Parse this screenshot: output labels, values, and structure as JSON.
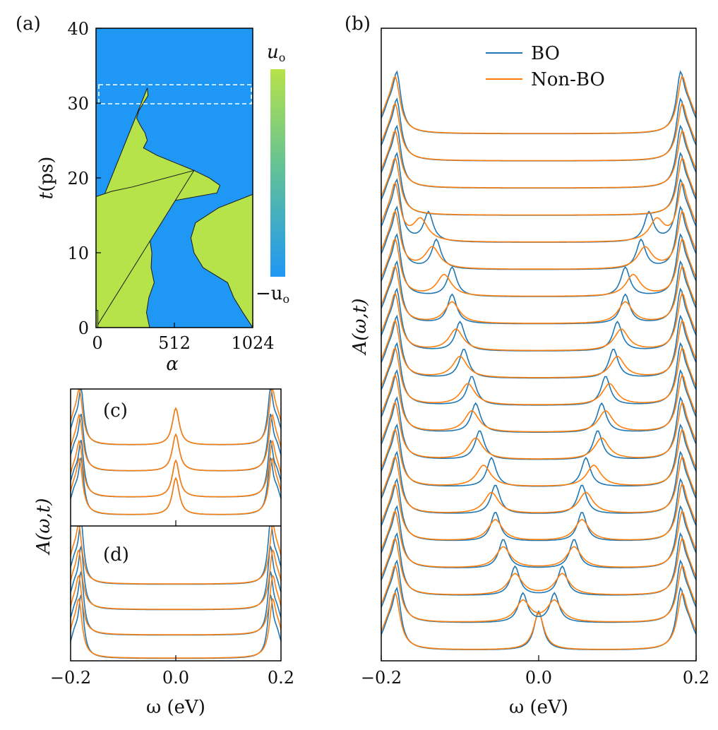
{
  "colors": {
    "bo": "#1f77b4",
    "nonbo": "#ff7f0e",
    "map_low": "#1f97f4",
    "map_high": "#b6e24a"
  },
  "chart_data": [
    {
      "id": "a",
      "type": "heatmap",
      "panel_label": "(a)",
      "title": "",
      "xlabel": "α",
      "ylabel": "t(ps)",
      "xlim": [
        0,
        1024
      ],
      "ylim": [
        0,
        40
      ],
      "x_ticks": [
        "0",
        "512",
        "1024"
      ],
      "y_ticks": [
        "0",
        "10",
        "20",
        "30",
        "40"
      ],
      "colorbar": {
        "top_label": "u",
        "top_sub": "o",
        "bottom_label": "−u",
        "bottom_sub": "o"
      },
      "highlight_window_t": [
        30.0,
        32.5
      ],
      "domain_walls": {
        "wall1_t": [
          0,
          2,
          4,
          6,
          8,
          10,
          12,
          13,
          14,
          15,
          16,
          17,
          18,
          19,
          20,
          21,
          22,
          23,
          24,
          25,
          26,
          27,
          28,
          29,
          30,
          31,
          32
        ],
        "wall1_alpha": [
          350,
          330,
          345,
          380,
          360,
          365,
          350,
          330,
          310,
          290,
          420,
          520,
          790,
          810,
          740,
          640,
          520,
          400,
          310,
          335,
          320,
          290,
          265,
          280,
          310,
          340,
          335
        ],
        "wall2_t": [
          0,
          2,
          4,
          6,
          8,
          10,
          12,
          14,
          16,
          17.8
        ],
        "wall2_alpha": [
          1024,
          960,
          900,
          860,
          700,
          640,
          620,
          650,
          800,
          1024
        ],
        "wall0_t": [
          0,
          2.3
        ],
        "wall0_alpha": [
          10,
          10
        ],
        "wall3_t": [
          17.5,
          18.8
        ],
        "wall3_alpha": [
          0,
          240
        ]
      }
    },
    {
      "id": "b",
      "type": "line",
      "panel_label": "(b)",
      "xlabel": "ω (eV)",
      "ylabel": "A(ω,t)",
      "xlim": [
        -0.2,
        0.2
      ],
      "x_ticks": [
        "−0.2",
        "0.0",
        "0.2"
      ],
      "legend": [
        "BO",
        "Non-BO"
      ],
      "legend_position": "top-center",
      "series_note": "20 stacked spectra, bottom to top; inner peak positions ±ω (eV)",
      "inner_peak_bo": [
        0.0,
        0.02,
        0.03,
        0.045,
        0.055,
        0.055,
        0.06,
        0.075,
        0.08,
        0.085,
        0.095,
        0.1,
        0.11,
        0.11,
        0.13,
        0.14,
        0.17,
        0.17,
        0.17,
        0.17
      ],
      "inner_peak_nonbo": [
        0.0,
        0.02,
        0.03,
        0.045,
        0.055,
        0.06,
        0.07,
        0.08,
        0.085,
        0.09,
        0.1,
        0.105,
        0.11,
        0.12,
        0.135,
        0.15,
        0.16,
        0.17,
        0.17,
        0.17
      ],
      "edge_peak": 0.18
    },
    {
      "id": "c",
      "type": "line",
      "panel_label": "(c)",
      "xlim": [
        -0.2,
        0.2
      ],
      "series_note": "5 stacked spectra with central peak at ω = 0 and edge peaks at ±0.18",
      "inner_peak": [
        0.0,
        0.0,
        0.0,
        0.0,
        0.0
      ],
      "edge_peak": 0.18
    },
    {
      "id": "d",
      "type": "line",
      "panel_label": "(d)",
      "xlabel": "ω (eV)",
      "ylabel": "A(ω,t)",
      "xlim": [
        -0.2,
        0.2
      ],
      "x_ticks": [
        "−0.2",
        "0.0",
        "0.2"
      ],
      "series_note": "5 stacked flat spectra with edge peaks only",
      "edge_peak": 0.18
    }
  ]
}
